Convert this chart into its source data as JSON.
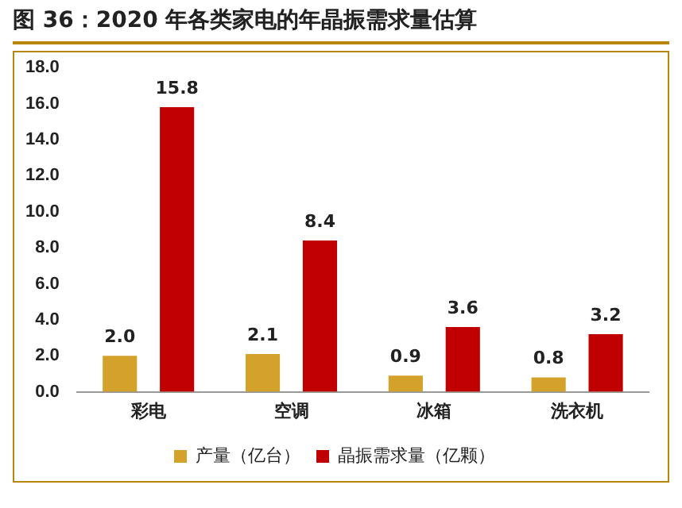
{
  "chart_data": {
    "type": "bar",
    "title": "图 36：2020 年各类家电的年晶振需求量估算",
    "categories": [
      "彩电",
      "空调",
      "冰箱",
      "洗衣机"
    ],
    "series": [
      {
        "name": "产量（亿台）",
        "color": "#d4a12a",
        "values": [
          2.0,
          2.1,
          0.9,
          0.8
        ],
        "value_labels": [
          "2.0",
          "2.1",
          "0.9",
          "0.8"
        ]
      },
      {
        "name": "晶振需求量（亿颗）",
        "color": "#c00000",
        "values": [
          15.8,
          8.4,
          3.6,
          3.2
        ],
        "value_labels": [
          "15.8",
          "8.4",
          "3.6",
          "3.2"
        ]
      }
    ],
    "ylim": [
      0,
      18
    ],
    "yticks": [
      {
        "value": 0,
        "label": "0.0"
      },
      {
        "value": 2,
        "label": "2.0"
      },
      {
        "value": 4,
        "label": "4.0"
      },
      {
        "value": 6,
        "label": "6.0"
      },
      {
        "value": 8,
        "label": "8.0"
      },
      {
        "value": 10,
        "label": "10.0"
      },
      {
        "value": 12,
        "label": "12.0"
      },
      {
        "value": 14,
        "label": "14.0"
      },
      {
        "value": 16,
        "label": "16.0"
      },
      {
        "value": 18,
        "label": "18.0"
      }
    ],
    "grid": false,
    "legend": "bottom"
  }
}
